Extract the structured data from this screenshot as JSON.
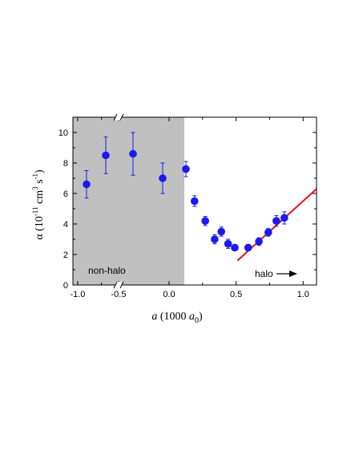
{
  "chart_data": {
    "type": "scatter",
    "x_axis": {
      "tick_labels": [
        "-1.0",
        "-0.5",
        "0.0",
        "0.5",
        "1.0"
      ],
      "label_italic": "a",
      "label_mid": " (1000 ",
      "label_sub_base": "a",
      "label_sub": "0",
      "label_end": ")",
      "left_segment_range": [
        -1.05,
        0.12
      ],
      "right_segment_range": [
        0.0,
        1.1
      ],
      "axis_break_between": [
        -0.5,
        0.0
      ]
    },
    "y_axis": {
      "tick_labels": [
        "0",
        "2",
        "4",
        "6",
        "8",
        "10"
      ],
      "ylim": [
        0,
        11
      ],
      "label_symbol": "α",
      "label_open": " (10",
      "label_exp1": "-11",
      "label_unit1": " cm",
      "label_exp2": "3",
      "label_unit2": " s",
      "label_exp3": "-1",
      "label_close": ")"
    },
    "regions": {
      "non_halo_label": "non-halo",
      "halo_label": "halo",
      "non_halo_color": "#c0c0c0"
    },
    "colors": {
      "points": "#1a1aee",
      "error_bars": "#1a1aee",
      "fit_line": "#ee1111"
    },
    "left_points": [
      {
        "x": -0.97,
        "y": 6.6,
        "err": 0.9
      },
      {
        "x": -0.78,
        "y": 8.5,
        "err": 1.2
      },
      {
        "x": -0.58,
        "y": 8.6,
        "err": 1.4
      },
      {
        "x": -0.38,
        "y": 7.0,
        "err": 1.0
      },
      {
        "x": -0.2,
        "y": 7.6,
        "err": 0.5
      }
    ],
    "right_points": [
      {
        "x": 0.19,
        "y": 5.5,
        "err": 0.35
      },
      {
        "x": 0.27,
        "y": 4.2,
        "err": 0.3
      },
      {
        "x": 0.34,
        "y": 3.0,
        "err": 0.3
      },
      {
        "x": 0.39,
        "y": 3.5,
        "err": 0.3
      },
      {
        "x": 0.44,
        "y": 2.7,
        "err": 0.3
      },
      {
        "x": 0.49,
        "y": 2.45,
        "err": 0.15
      },
      {
        "x": 0.59,
        "y": 2.45,
        "err": 0.2
      },
      {
        "x": 0.67,
        "y": 2.85,
        "err": 0.25
      },
      {
        "x": 0.74,
        "y": 3.45,
        "err": 0.25
      },
      {
        "x": 0.8,
        "y": 4.2,
        "err": 0.35
      },
      {
        "x": 0.86,
        "y": 4.4,
        "err": 0.4
      }
    ],
    "fit_line": {
      "x": [
        0.51,
        1.1
      ],
      "y": [
        1.6,
        6.3
      ]
    }
  }
}
